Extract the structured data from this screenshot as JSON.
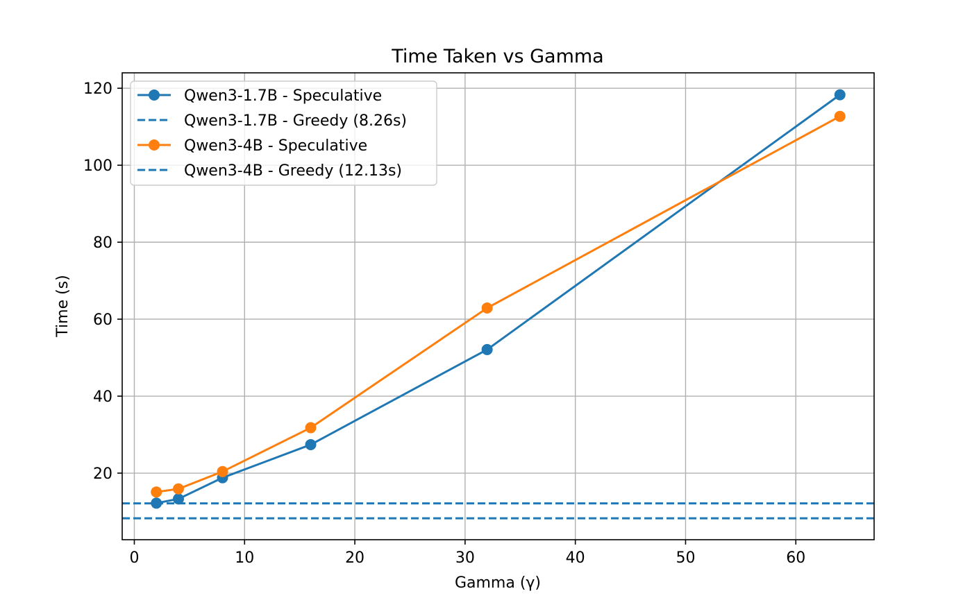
{
  "chart_data": {
    "type": "line",
    "title": "Time Taken vs Gamma",
    "xlabel": "Gamma (γ)",
    "ylabel": "Time (s)",
    "xlim": [
      -1.1,
      67.1
    ],
    "ylim": [
      2.7,
      124.0
    ],
    "xticks": [
      0,
      10,
      20,
      30,
      40,
      50,
      60
    ],
    "yticks": [
      20,
      40,
      60,
      80,
      100,
      120
    ],
    "grid": true,
    "legend_position": "top-left",
    "series": [
      {
        "name": "Qwen3-1.7B - Speculative",
        "style": "solid",
        "marker": "circle",
        "color": "#1f77b4",
        "x": [
          2,
          4,
          8,
          16,
          32,
          64
        ],
        "y": [
          12.2,
          13.3,
          18.8,
          27.4,
          52.1,
          118.3
        ]
      },
      {
        "name": "Qwen3-1.7B - Greedy (8.26s)",
        "style": "dashed",
        "color": "#1f77b4",
        "hline": 8.26
      },
      {
        "name": "Qwen3-4B - Speculative",
        "style": "solid",
        "marker": "circle",
        "color": "#ff7f0e",
        "x": [
          2,
          4,
          8,
          16,
          32,
          64
        ],
        "y": [
          15.1,
          15.9,
          20.4,
          31.8,
          62.9,
          112.7
        ]
      },
      {
        "name": "Qwen3-4B - Greedy (12.13s)",
        "style": "dashed",
        "color": "#1f77b4",
        "hline": 12.13
      }
    ]
  }
}
